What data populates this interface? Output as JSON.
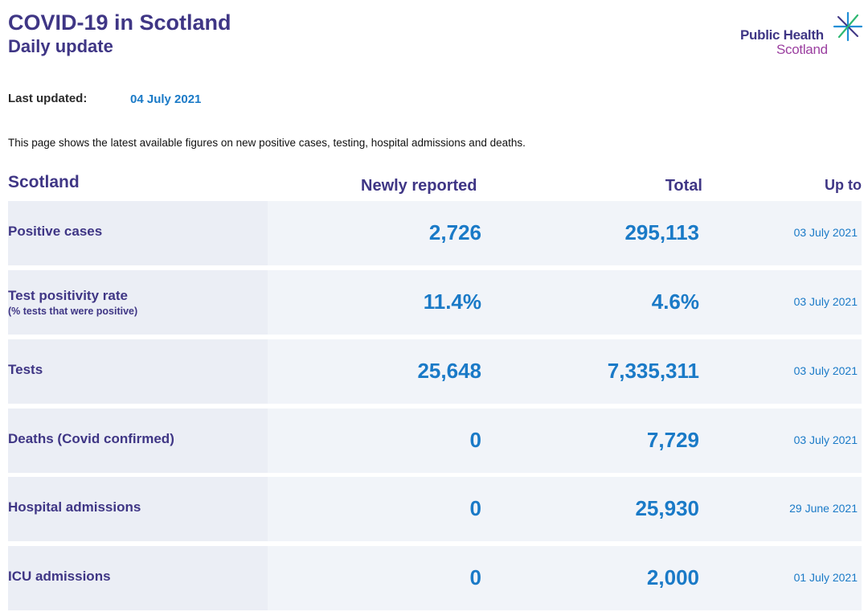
{
  "header": {
    "title": "COVID-19 in Scotland",
    "subtitle": "Daily update",
    "logo_line1": "Public Health",
    "logo_line2": "Scotland"
  },
  "updated": {
    "label": "Last updated:",
    "value": "04 July 2021"
  },
  "intro": "This page shows the latest available figures on new positive cases, testing, hospital admissions and deaths.",
  "table": {
    "headers": {
      "region": "Scotland",
      "newly": "Newly reported",
      "total": "Total",
      "upto": "Up to"
    },
    "rows": [
      {
        "label": "Positive cases",
        "sublabel": "",
        "newly": "2,726",
        "total": "295,113",
        "date": "03 July 2021"
      },
      {
        "label": "Test positivity rate",
        "sublabel": "(% tests that were positive)",
        "newly": "11.4%",
        "total": "4.6%",
        "date": "03 July 2021"
      },
      {
        "label": "Tests",
        "sublabel": "",
        "newly": "25,648",
        "total": "7,335,311",
        "date": "03 July 2021"
      },
      {
        "label": "Deaths (Covid confirmed)",
        "sublabel": "",
        "newly": "0",
        "total": "7,729",
        "date": "03 July 2021"
      },
      {
        "label": "Hospital admissions",
        "sublabel": "",
        "newly": "0",
        "total": "25,930",
        "date": "29 June 2021"
      },
      {
        "label": "ICU admissions",
        "sublabel": "",
        "newly": "0",
        "total": "2,000",
        "date": "01 July 2021"
      }
    ]
  },
  "colors": {
    "heading": "#3f3685",
    "value": "#1a7ac7",
    "row_bg": "#f1f4f9",
    "label_bg": "#ebeef5"
  }
}
